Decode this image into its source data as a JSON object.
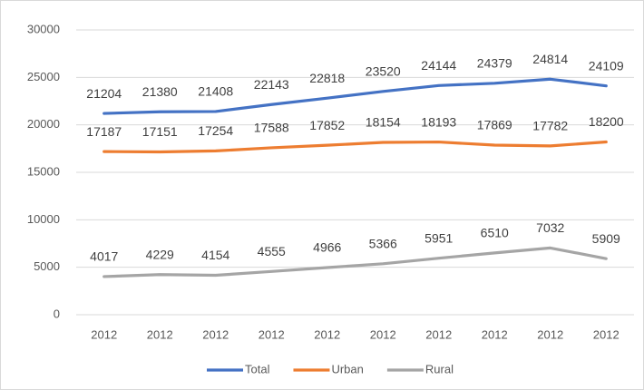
{
  "chart_data": {
    "type": "line",
    "categories": [
      "2012",
      "2012",
      "2012",
      "2012",
      "2012",
      "2012",
      "2012",
      "2012",
      "2012",
      "2012"
    ],
    "series": [
      {
        "name": "Total",
        "color": "#4472c4",
        "values": [
          21204,
          21380,
          21408,
          22143,
          22818,
          23520,
          24144,
          24379,
          24814,
          24109
        ]
      },
      {
        "name": "Urban",
        "color": "#ed7d31",
        "values": [
          17187,
          17151,
          17254,
          17588,
          17852,
          18154,
          18193,
          17869,
          17782,
          18200
        ]
      },
      {
        "name": "Rural",
        "color": "#a5a5a5",
        "values": [
          4017,
          4229,
          4154,
          4555,
          4966,
          5366,
          5951,
          6510,
          7032,
          5909
        ]
      }
    ],
    "ylim": [
      0,
      30000
    ],
    "yticks": [
      0,
      5000,
      10000,
      15000,
      20000,
      25000,
      30000
    ],
    "grid": true,
    "legend": "bottom"
  }
}
